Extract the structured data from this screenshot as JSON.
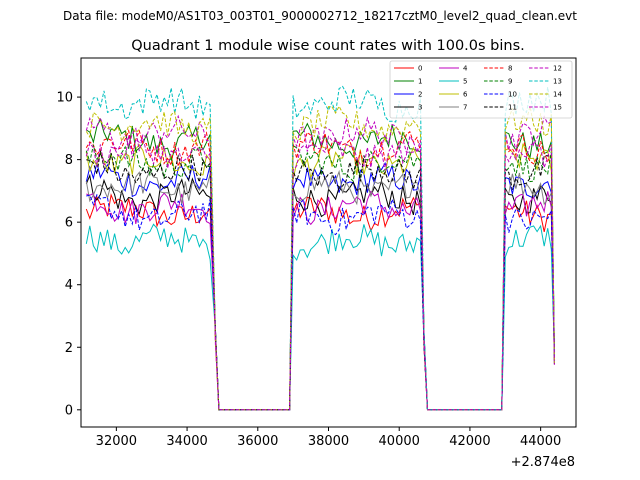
{
  "figure": {
    "suptitle": "Data file: modeM0/AS1T03_003T01_9000002712_18217cztM0_level2_quad_clean.evt"
  },
  "chart_data": {
    "type": "line",
    "title": "Quadrant 1 module wise count rates with 100.0s bins.",
    "xlabel": "",
    "ylabel": "",
    "x_offset_label": "+2.874e8",
    "xlim": [
      31000,
      45000
    ],
    "ylim": [
      -0.55,
      11.25
    ],
    "xticks": [
      32000,
      34000,
      36000,
      38000,
      40000,
      42000,
      44000
    ],
    "yticks": [
      0,
      2,
      4,
      6,
      8,
      10
    ],
    "grid": false,
    "legend_position": "top-right",
    "gti": [
      [
        31150,
        34700
      ],
      [
        37000,
        40600
      ],
      [
        43000,
        44350
      ]
    ],
    "gap_level": 0,
    "series": [
      {
        "name": "0",
        "color": "#ff0000",
        "dash": "solid",
        "mean": 6.3
      },
      {
        "name": "1",
        "color": "#008000",
        "dash": "solid",
        "mean": 8.6
      },
      {
        "name": "2",
        "color": "#0000ff",
        "dash": "solid",
        "mean": 7.3
      },
      {
        "name": "3",
        "color": "#000000",
        "dash": "solid",
        "mean": 6.8
      },
      {
        "name": "4",
        "color": "#bf00bf",
        "dash": "solid",
        "mean": 6.5
      },
      {
        "name": "5",
        "color": "#00bfbf",
        "dash": "solid",
        "mean": 5.4
      },
      {
        "name": "6",
        "color": "#bfbf00",
        "dash": "solid",
        "mean": 7.9
      },
      {
        "name": "7",
        "color": "#808080",
        "dash": "solid",
        "mean": 7.1
      },
      {
        "name": "8",
        "color": "#ff0000",
        "dash": "dashed",
        "mean": 8.4
      },
      {
        "name": "9",
        "color": "#008000",
        "dash": "dashed",
        "mean": 7.9
      },
      {
        "name": "10",
        "color": "#0000ff",
        "dash": "dashed",
        "mean": 6.2
      },
      {
        "name": "11",
        "color": "#000000",
        "dash": "dashed",
        "mean": 7.6
      },
      {
        "name": "12",
        "color": "#bf00bf",
        "dash": "dashed",
        "mean": 8.8
      },
      {
        "name": "13",
        "color": "#00bfbf",
        "dash": "dashed",
        "mean": 9.8
      },
      {
        "name": "14",
        "color": "#bfbf00",
        "dash": "dashed",
        "mean": 9.1
      },
      {
        "name": "15",
        "color": "#bf00bf",
        "dash": "dashed",
        "mean": 8.2
      }
    ]
  }
}
